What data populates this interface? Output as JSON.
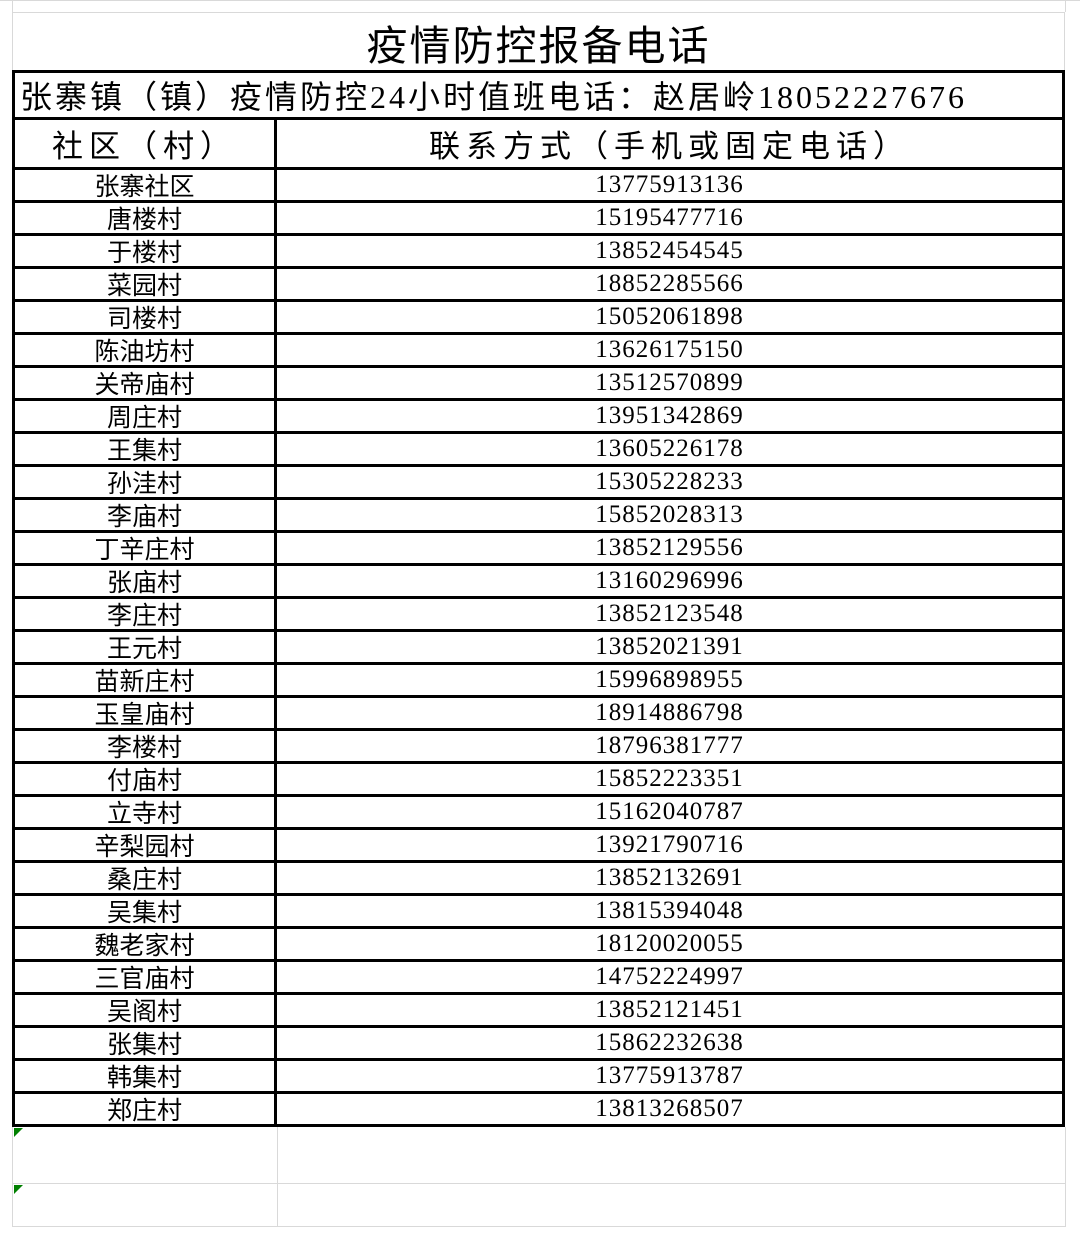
{
  "colors": {
    "border_bold": "#000000",
    "grid_line": "#d9d9d9",
    "error_marker_green": "#008000",
    "text": "#000000",
    "background": "#ffffff"
  },
  "table": {
    "title": "疫情防控报备电话",
    "subtitle": "张寨镇（镇）疫情防控24小时值班电话：赵居岭18052227676",
    "headers": {
      "community": "社区（村）",
      "contact": "联系方式（手机或固定电话）"
    },
    "rows": [
      {
        "name": "张寨社区",
        "phone": "13775913136"
      },
      {
        "name": "唐楼村",
        "phone": "15195477716"
      },
      {
        "name": "于楼村",
        "phone": "13852454545"
      },
      {
        "name": "菜园村",
        "phone": "18852285566"
      },
      {
        "name": "司楼村",
        "phone": "15052061898"
      },
      {
        "name": "陈油坊村",
        "phone": "13626175150"
      },
      {
        "name": "关帝庙村",
        "phone": "13512570899"
      },
      {
        "name": "周庄村",
        "phone": "13951342869"
      },
      {
        "name": "王集村",
        "phone": "13605226178"
      },
      {
        "name": "孙洼村",
        "phone": "15305228233"
      },
      {
        "name": "李庙村",
        "phone": "15852028313"
      },
      {
        "name": "丁辛庄村",
        "phone": "13852129556"
      },
      {
        "name": "张庙村",
        "phone": "13160296996"
      },
      {
        "name": "李庄村",
        "phone": "13852123548"
      },
      {
        "name": "王元村",
        "phone": "13852021391"
      },
      {
        "name": "苗新庄村",
        "phone": "15996898955"
      },
      {
        "name": "玉皇庙村",
        "phone": "18914886798"
      },
      {
        "name": "李楼村",
        "phone": "18796381777"
      },
      {
        "name": "付庙村",
        "phone": "15852223351"
      },
      {
        "name": "立寺村",
        "phone": "15162040787"
      },
      {
        "name": "辛梨园村",
        "phone": "13921790716"
      },
      {
        "name": "桑庄村",
        "phone": "13852132691"
      },
      {
        "name": "吴集村",
        "phone": "13815394048"
      },
      {
        "name": "魏老家村",
        "phone": "18120020055"
      },
      {
        "name": "三官庙村",
        "phone": "14752224997"
      },
      {
        "name": "吴阁村",
        "phone": "13852121451"
      },
      {
        "name": "张集村",
        "phone": "15862232638"
      },
      {
        "name": "韩集村",
        "phone": "13775913787"
      },
      {
        "name": "郑庄村",
        "phone": "13813268507"
      }
    ]
  }
}
